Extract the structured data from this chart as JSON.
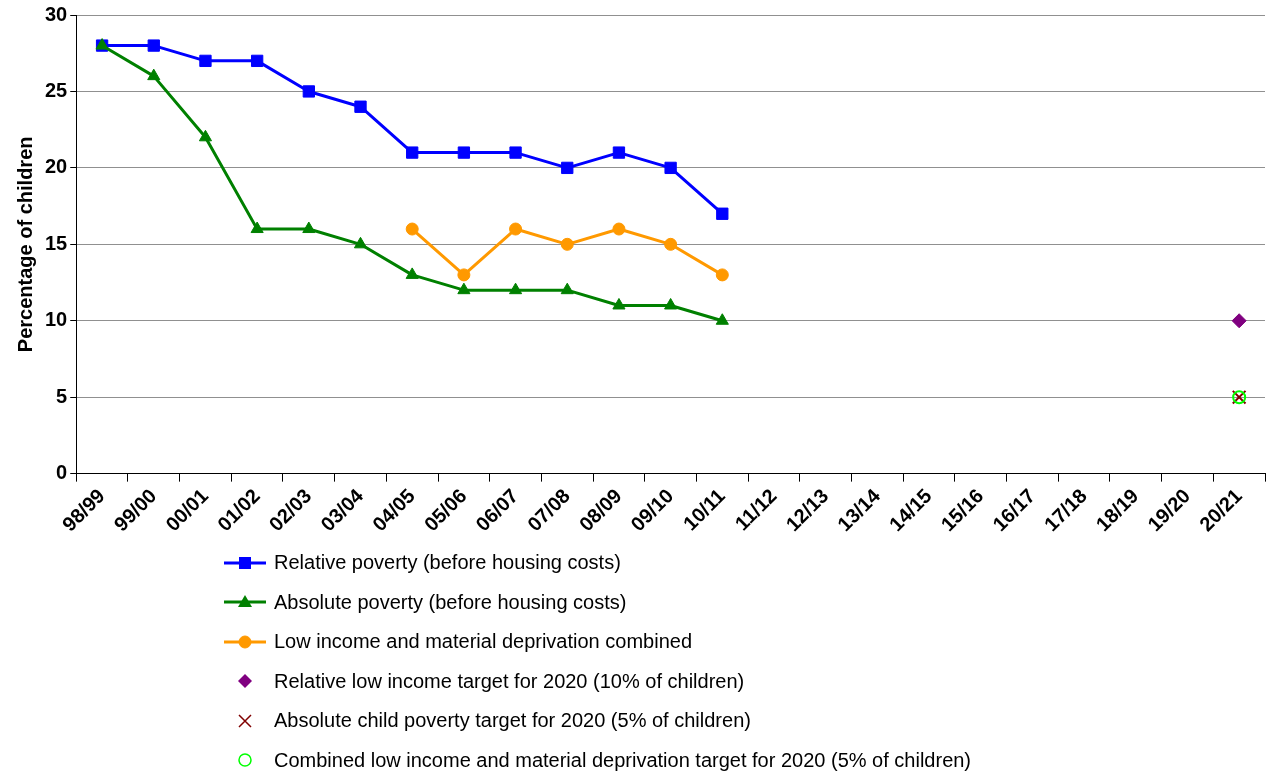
{
  "chart_data": {
    "type": "line",
    "ylabel": "Percentage of children",
    "categories": [
      "98/99",
      "99/00",
      "00/01",
      "01/02",
      "02/03",
      "03/04",
      "04/05",
      "05/06",
      "06/07",
      "07/08",
      "08/09",
      "09/10",
      "10/11",
      "11/12",
      "12/13",
      "13/14",
      "14/15",
      "15/16",
      "16/17",
      "17/18",
      "18/19",
      "19/20",
      "20/21"
    ],
    "series": [
      {
        "name": "Relative poverty (before housing costs)",
        "color": "#0000ff",
        "marker": "square",
        "values": [
          28,
          28,
          27,
          27,
          25,
          24,
          21,
          21,
          21,
          20,
          21,
          20,
          17,
          null,
          null,
          null,
          null,
          null,
          null,
          null,
          null,
          null,
          null
        ]
      },
      {
        "name": "Absolute poverty (before housing costs)",
        "color": "#008000",
        "marker": "triangle",
        "values": [
          28,
          26,
          22,
          16,
          16,
          15,
          13,
          12,
          12,
          12,
          11,
          11,
          10,
          null,
          null,
          null,
          null,
          null,
          null,
          null,
          null,
          null,
          null
        ]
      },
      {
        "name": "Low income and material deprivation combined",
        "color": "#ff9900",
        "marker": "circle",
        "values": [
          null,
          null,
          null,
          null,
          null,
          null,
          16,
          13,
          16,
          15,
          16,
          15,
          13,
          null,
          null,
          null,
          null,
          null,
          null,
          null,
          null,
          null,
          null
        ]
      },
      {
        "name": "Relative low income target for 2020 (10% of children)",
        "type": "scatter",
        "color": "#800080",
        "marker": "diamond",
        "x": [
          "20/21"
        ],
        "values": [
          10
        ]
      },
      {
        "name": "Absolute child poverty target for 2020 (5% of children)",
        "type": "scatter",
        "color": "#800000",
        "marker": "cross",
        "x": [
          "20/21"
        ],
        "values": [
          5
        ]
      },
      {
        "name": "Combined low income and material deprivation target for 2020 (5% of children)",
        "type": "scatter",
        "color": "#00ff00",
        "marker": "circle",
        "x": [
          "20/21"
        ],
        "values": [
          5
        ]
      }
    ],
    "ylim": [
      0,
      30
    ],
    "yticks": [
      0,
      5,
      10,
      15,
      20,
      25,
      30
    ],
    "grid": "y",
    "legend": "bottom"
  }
}
